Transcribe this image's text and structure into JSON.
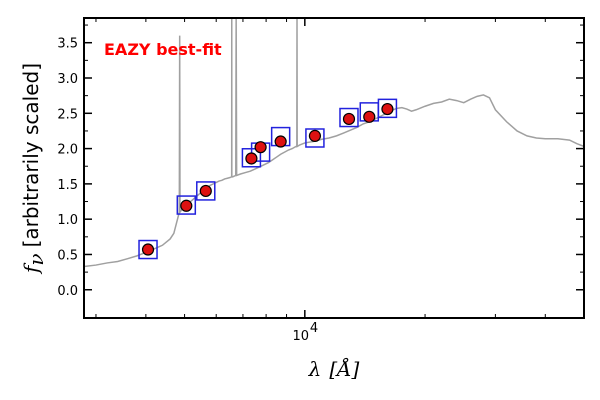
{
  "chart_data": {
    "type": "line",
    "title": "",
    "annotation": "EAZY best-fit",
    "annotation_color": "#ff0000",
    "xlabel": "λ [Å]",
    "ylabel": "f_ν [arbitrarily scaled]",
    "ylabel_main": "[arbitrarily scaled]",
    "ylabel_symbol": "f",
    "ylabel_subscript": "ν",
    "xlabel_symbol": "λ",
    "xlabel_unit": "[Å]",
    "x_scale": "log",
    "xlim": [
      2800,
      50000
    ],
    "ylim": [
      -0.4,
      3.85
    ],
    "x_ticks": [
      {
        "value": 10000,
        "label": "10",
        "exponent": "4"
      }
    ],
    "y_ticks": [
      {
        "value": 0.0,
        "label": "0.0"
      },
      {
        "value": 0.5,
        "label": "0.5"
      },
      {
        "value": 1.0,
        "label": "1.0"
      },
      {
        "value": 1.5,
        "label": "1.5"
      },
      {
        "value": 2.0,
        "label": "2.0"
      },
      {
        "value": 2.5,
        "label": "2.5"
      },
      {
        "value": 3.0,
        "label": "3.0"
      },
      {
        "value": 3.5,
        "label": "3.5"
      }
    ],
    "grid": false,
    "colors": {
      "sed": "#a0a0a0",
      "observed_face": "#dd1111",
      "observed_edge": "#000000",
      "model_box": "#2222dd"
    },
    "series": [
      {
        "kind": "model_sed_line",
        "points": [
          [
            2800,
            0.33
          ],
          [
            3000,
            0.35
          ],
          [
            3200,
            0.38
          ],
          [
            3400,
            0.4
          ],
          [
            3600,
            0.44
          ],
          [
            3800,
            0.48
          ],
          [
            4000,
            0.53
          ],
          [
            4200,
            0.58
          ],
          [
            4400,
            0.63
          ],
          [
            4600,
            0.72
          ],
          [
            4700,
            0.8
          ],
          [
            4800,
            1.0
          ],
          [
            4850,
            1.1
          ],
          [
            4861,
            3.6
          ],
          [
            4870,
            1.1
          ],
          [
            4959,
            1.16
          ],
          [
            5007,
            1.2
          ],
          [
            5050,
            1.2
          ],
          [
            5150,
            1.24
          ],
          [
            5250,
            1.28
          ],
          [
            5300,
            1.3
          ],
          [
            5400,
            1.34
          ],
          [
            5500,
            1.38
          ],
          [
            5600,
            1.41
          ],
          [
            5700,
            1.45
          ],
          [
            5800,
            1.48
          ],
          [
            5900,
            1.5
          ],
          [
            6000,
            1.52
          ],
          [
            6100,
            1.54
          ],
          [
            6200,
            1.55
          ],
          [
            6300,
            1.57
          ],
          [
            6400,
            1.58
          ],
          [
            6500,
            1.59
          ],
          [
            6560,
            1.6
          ],
          [
            6563,
            3.85
          ],
          [
            6566,
            1.6
          ],
          [
            6600,
            1.6
          ],
          [
            6716,
            1.62
          ],
          [
            6731,
            3.85
          ],
          [
            6750,
            1.62
          ],
          [
            6900,
            1.64
          ],
          [
            7100,
            1.66
          ],
          [
            7300,
            1.68
          ],
          [
            7500,
            1.71
          ],
          [
            7700,
            1.74
          ],
          [
            7900,
            1.77
          ],
          [
            8100,
            1.8
          ],
          [
            8300,
            1.84
          ],
          [
            8500,
            1.88
          ],
          [
            8700,
            1.92
          ],
          [
            8900,
            1.95
          ],
          [
            9100,
            1.98
          ],
          [
            9300,
            2.0
          ],
          [
            9500,
            2.03
          ],
          [
            9550,
            2.03
          ],
          [
            9560,
            3.85
          ],
          [
            9570,
            2.03
          ],
          [
            9700,
            2.05
          ],
          [
            10000,
            2.08
          ],
          [
            10500,
            2.1
          ],
          [
            11000,
            2.13
          ],
          [
            11500,
            2.15
          ],
          [
            12000,
            2.18
          ],
          [
            12500,
            2.22
          ],
          [
            13000,
            2.26
          ],
          [
            13500,
            2.3
          ],
          [
            14000,
            2.35
          ],
          [
            14500,
            2.38
          ],
          [
            15000,
            2.42
          ],
          [
            15500,
            2.46
          ],
          [
            16000,
            2.5
          ],
          [
            16500,
            2.54
          ],
          [
            17000,
            2.57
          ],
          [
            17500,
            2.58
          ],
          [
            18000,
            2.56
          ],
          [
            18500,
            2.53
          ],
          [
            19000,
            2.55
          ],
          [
            20000,
            2.6
          ],
          [
            21000,
            2.64
          ],
          [
            22000,
            2.66
          ],
          [
            23000,
            2.7
          ],
          [
            24000,
            2.68
          ],
          [
            25000,
            2.65
          ],
          [
            26000,
            2.7
          ],
          [
            27000,
            2.74
          ],
          [
            28000,
            2.76
          ],
          [
            29000,
            2.72
          ],
          [
            30000,
            2.55
          ],
          [
            32000,
            2.38
          ],
          [
            34000,
            2.25
          ],
          [
            36000,
            2.18
          ],
          [
            38000,
            2.15
          ],
          [
            40000,
            2.14
          ],
          [
            43000,
            2.14
          ],
          [
            46000,
            2.12
          ],
          [
            48000,
            2.07
          ],
          [
            50000,
            2.03
          ]
        ]
      },
      {
        "kind": "model_photometry_boxes",
        "points": [
          [
            4050,
            0.57
          ],
          [
            5050,
            1.2
          ],
          [
            5650,
            1.4
          ],
          [
            7350,
            1.87
          ],
          [
            7750,
            1.95
          ],
          [
            8700,
            2.17
          ],
          [
            10600,
            2.15
          ],
          [
            12900,
            2.44
          ],
          [
            14500,
            2.52
          ],
          [
            16100,
            2.57
          ]
        ]
      },
      {
        "kind": "observed_photometry",
        "points": [
          [
            4050,
            0.57
          ],
          [
            5050,
            1.19
          ],
          [
            5650,
            1.4
          ],
          [
            7350,
            1.86
          ],
          [
            7750,
            2.02
          ],
          [
            8700,
            2.1
          ],
          [
            10600,
            2.18
          ],
          [
            12900,
            2.42
          ],
          [
            14500,
            2.45
          ],
          [
            16100,
            2.56
          ]
        ]
      }
    ]
  }
}
